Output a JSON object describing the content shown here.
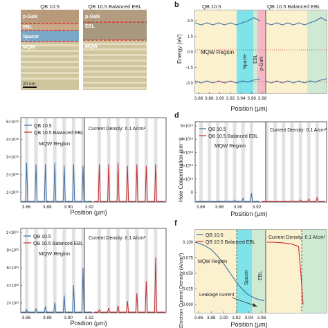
{
  "figure": {
    "panel_letters": {
      "b": "b",
      "d": "d",
      "f": "f"
    },
    "micrographs": {
      "left": {
        "title": "QB 10.5",
        "layers": [
          "p-GaN",
          "EBL",
          "Spacer",
          "MQW"
        ],
        "scale_bar": "20 nm"
      },
      "right": {
        "title": "QB 10.5 Balanced EBL",
        "layers": [
          "p-GaN",
          "EBL",
          "MQW"
        ]
      }
    }
  },
  "chart_data": [
    {
      "id": "b",
      "type": "line",
      "title_left": "QB 10.5",
      "title_right": "QB 10.5 Balanced EBL",
      "xlabel": "Position (μm)",
      "ylabel": "Energy (eV)",
      "xticks": [
        "3.86",
        "3.88",
        "3.90",
        "3.92",
        "3.94",
        "3.96",
        "3.98"
      ],
      "yticks": [
        "3.0",
        "1.5",
        "0.0",
        "-1.5",
        "-3.0"
      ],
      "ylim": [
        -3.6,
        3.6
      ],
      "region_labels": [
        "MQW Region",
        "Spacer",
        "EBL",
        "p-GaN"
      ],
      "series": [
        {
          "values": [
            2.8,
            2.6,
            2.8,
            2.6,
            2.8,
            2.6,
            2.8,
            2.6,
            2.8,
            3.0,
            3.3,
            3.0
          ]
        },
        {
          "values": [
            -2.8,
            -3.0,
            -2.8,
            -3.0,
            -2.8,
            -3.0,
            -2.8,
            -3.0,
            -2.8,
            -2.9,
            -2.7,
            -2.6
          ]
        }
      ],
      "colors": {
        "line": "#3a6ea5",
        "mqw": "#fbf1cf",
        "spacer": "#7fe3ea",
        "ebl": "#cfe9d3",
        "pgan": "#f4b8c4"
      }
    },
    {
      "id": "c",
      "type": "line",
      "xlabel": "Position (μm)",
      "xticks": [
        "3.86",
        "3.88",
        "3.90",
        "3.92"
      ],
      "yticks": [
        "5×10¹⁸",
        "4×10¹⁸",
        "3×10¹⁸",
        "2×10¹⁸",
        "1×10¹⁸"
      ],
      "ylim": [
        0,
        5
      ],
      "annotation": "Current Density: 0.1 A/cm²",
      "region_label": "MQW Region",
      "series": [
        {
          "name": "QB 10.5",
          "color": "#3a6ea5",
          "peaks": [
            2.5,
            2.4,
            2.4,
            2.5,
            2.3,
            2.4,
            2.3
          ]
        },
        {
          "name": "QB 10.5 Balanced EBL",
          "color": "#c8282d",
          "peaks": [
            2.4,
            2.4,
            2.5,
            2.3,
            2.4,
            2.3,
            2.4
          ]
        }
      ]
    },
    {
      "id": "d",
      "type": "line",
      "xlabel": "Position (μm)",
      "ylabel": "Hole Concentration (cm⁻³)",
      "xticks": [
        "3.86",
        "3.88",
        "3.90",
        "3.92"
      ],
      "yticks": [
        "5×10¹⁸",
        "4×10¹⁸",
        "3×10¹⁸",
        "2×10¹⁸",
        "1×10¹⁸",
        "0"
      ],
      "ylim": [
        0,
        5
      ],
      "annotation": "Current Density: 0.1 A/cm²",
      "region_label": "MQW Region",
      "series": [
        {
          "name": "QB 10.5",
          "color": "#3a6ea5",
          "peaks": [
            0.02,
            0.03,
            0.05,
            0.08,
            0.14,
            0.25,
            0.6
          ]
        },
        {
          "name": "QB 10.5 Balanced EBL",
          "color": "#c8282d",
          "peaks": [
            0.02,
            0.03,
            0.05,
            0.08,
            0.14,
            0.2,
            0.3
          ]
        }
      ]
    },
    {
      "id": "e",
      "type": "line",
      "xlabel": "Position (μm)",
      "xticks": [
        "3.86",
        "3.88",
        "3.90",
        "3.92"
      ],
      "yticks": [
        "1×10²⁴",
        "8×10²³",
        "6×10²³",
        "4×10²³",
        "2×10²³"
      ],
      "ylim": [
        0,
        10
      ],
      "annotation": "Current Density: 0.1 A/cm²",
      "region_label": "MQW Region",
      "series": [
        {
          "name": "QB 10.5",
          "color": "#3a6ea5",
          "peaks": [
            0.4,
            0.5,
            0.8,
            1.3,
            2.2,
            3.5,
            5.7
          ]
        },
        {
          "name": "QB 10.5 Balanced EBL",
          "color": "#c8282d",
          "peaks": [
            0.4,
            0.6,
            0.9,
            1.5,
            2.5,
            4.0,
            7.0
          ]
        }
      ]
    },
    {
      "id": "f",
      "type": "line",
      "xlabel": "Position (μm)",
      "ylabel": "Electron Current Density (A/cm²)",
      "xticks": [
        "3.86",
        "3.88",
        "3.90",
        "3.92",
        "3.94",
        "3.96"
      ],
      "yticks": [
        "0.100",
        "0.075",
        "0.050",
        "0.025",
        "0.000"
      ],
      "ylim": [
        0,
        0.11
      ],
      "annotation": "Current Density: 0.1 A/cm²",
      "region_labels": [
        "MQW Region",
        "Spacer",
        "EBL"
      ],
      "leakage_label": "Leakage current",
      "series": [
        {
          "name": "QB 10.5",
          "color": "#3a6ea5",
          "x": [
            3.855,
            3.862,
            3.872,
            3.882,
            3.892,
            3.902,
            3.912,
            3.922,
            3.93,
            3.94,
            3.95,
            3.96,
            3.97
          ],
          "values": [
            0.1,
            0.098,
            0.094,
            0.088,
            0.078,
            0.066,
            0.052,
            0.038,
            0.028,
            0.018,
            0.012,
            0.008,
            0.006
          ]
        },
        {
          "name": "QB 10.5 Balanced EBL",
          "color": "#c8282d",
          "x": [
            3.855,
            3.87,
            3.89,
            3.91,
            3.925,
            3.93,
            3.935
          ],
          "values": [
            0.1,
            0.1,
            0.099,
            0.097,
            0.093,
            0.05,
            0.0
          ]
        }
      ]
    }
  ]
}
